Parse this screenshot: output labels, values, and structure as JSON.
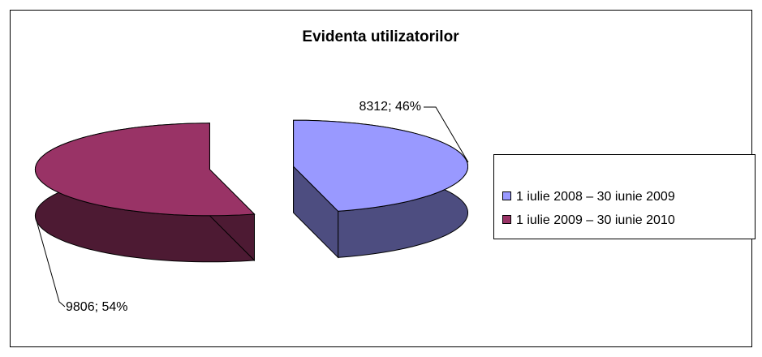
{
  "chart_data": {
    "type": "pie3d",
    "title": "Evidenta utilizatorilor",
    "categories": [
      "1 iulie 2008 – 30 iunie 2009",
      "1 iulie 2009 – 30 iunie 2010"
    ],
    "values": [
      8312,
      9806
    ],
    "value_labels": [
      "8312; 46%",
      "9806; 54%"
    ],
    "colors": [
      "#9999ff",
      "#993366"
    ],
    "side_colors": [
      "#4d4d80",
      "#4d1a33"
    ],
    "legend": "right"
  }
}
